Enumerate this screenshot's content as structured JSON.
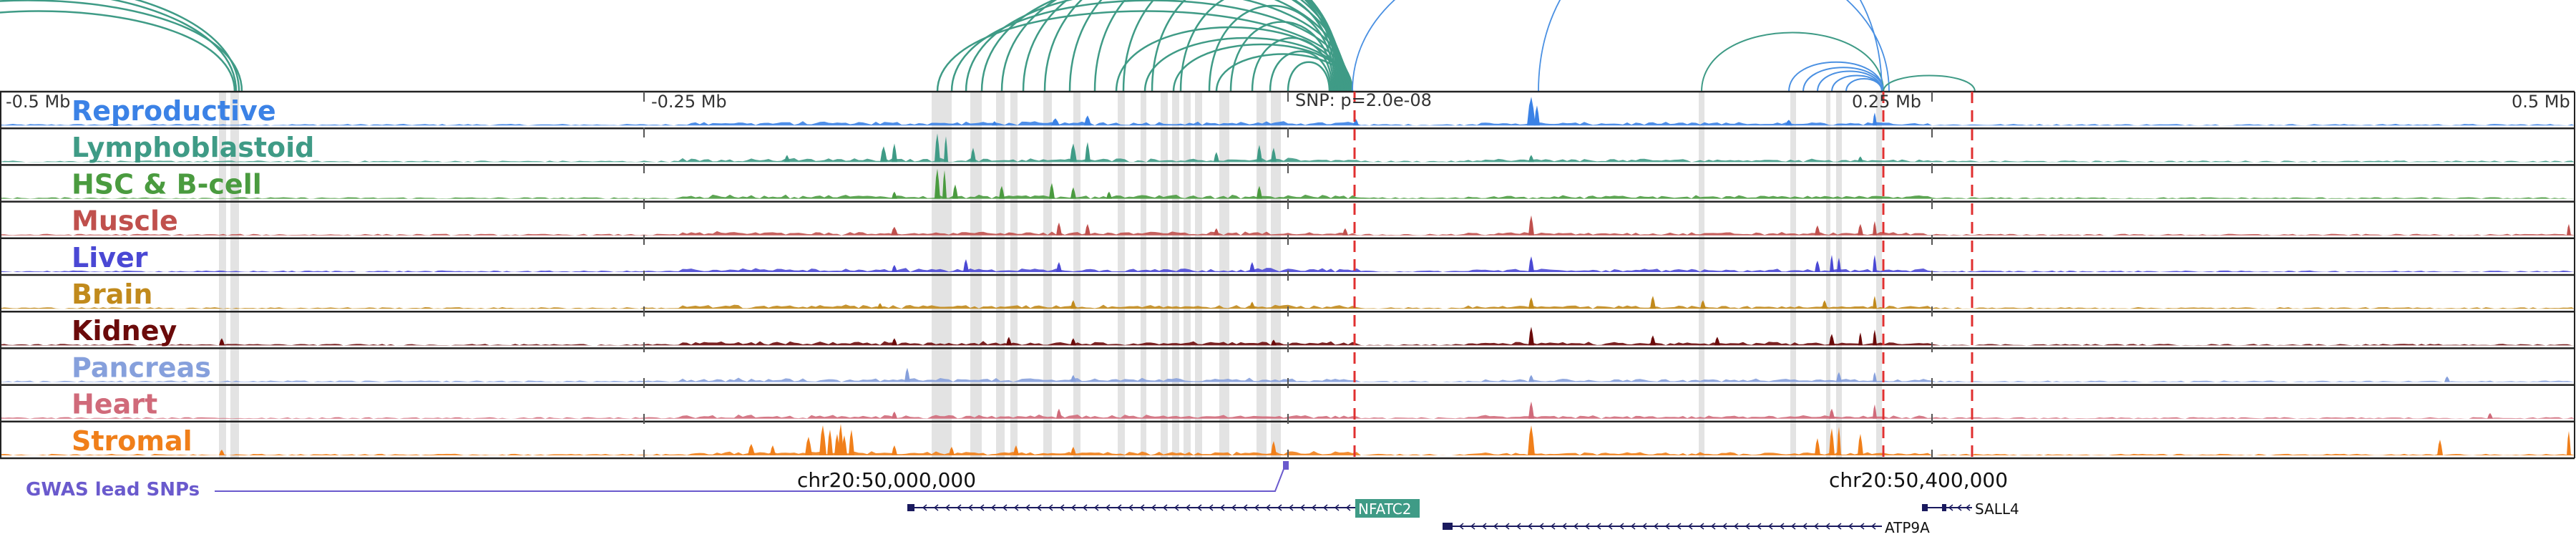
{
  "scale_labels": {
    "left": "-0.5 Mb",
    "left_mid": "-0.25 Mb",
    "snp": "SNP: p=2.0e-08",
    "right_mid": "0.25 Mb",
    "right": "0.5 Mb"
  },
  "tracks": [
    {
      "id": "reproductive",
      "label": "Reproductive",
      "color": "#3b82e6"
    },
    {
      "id": "lymphoblastoid",
      "label": "Lymphoblastoid",
      "color": "#3f9b86"
    },
    {
      "id": "hsc-b-cell",
      "label": "HSC & B-cell",
      "color": "#4a9b3f"
    },
    {
      "id": "muscle",
      "label": "Muscle",
      "color": "#c0504d"
    },
    {
      "id": "liver",
      "label": "Liver",
      "color": "#4a48d4"
    },
    {
      "id": "brain",
      "label": "Brain",
      "color": "#c18a1c"
    },
    {
      "id": "kidney",
      "label": "Kidney",
      "color": "#6b0a0a"
    },
    {
      "id": "pancreas",
      "label": "Pancreas",
      "color": "#86a0dc"
    },
    {
      "id": "heart",
      "label": "Heart",
      "color": "#d06a7a"
    },
    {
      "id": "stromal",
      "label": "Stromal",
      "color": "#f07f1a"
    }
  ],
  "gwas": {
    "label": "GWAS lead SNPs",
    "color": "#6a5acd"
  },
  "coordinates": {
    "left": "chr20:50,000,000",
    "right": "chr20:50,400,000"
  },
  "genes": [
    {
      "name": "NFATC2",
      "highlighted": true
    },
    {
      "name": "SALL4",
      "highlighted": false
    },
    {
      "name": "ATP9A",
      "highlighted": false
    }
  ],
  "colors": {
    "arc_teal": "#3f9b86",
    "arc_blue": "#4a90e2",
    "snp_line": "#e03030",
    "gene": "#1a1a5e",
    "highlight_band": "#d9d9d9"
  }
}
